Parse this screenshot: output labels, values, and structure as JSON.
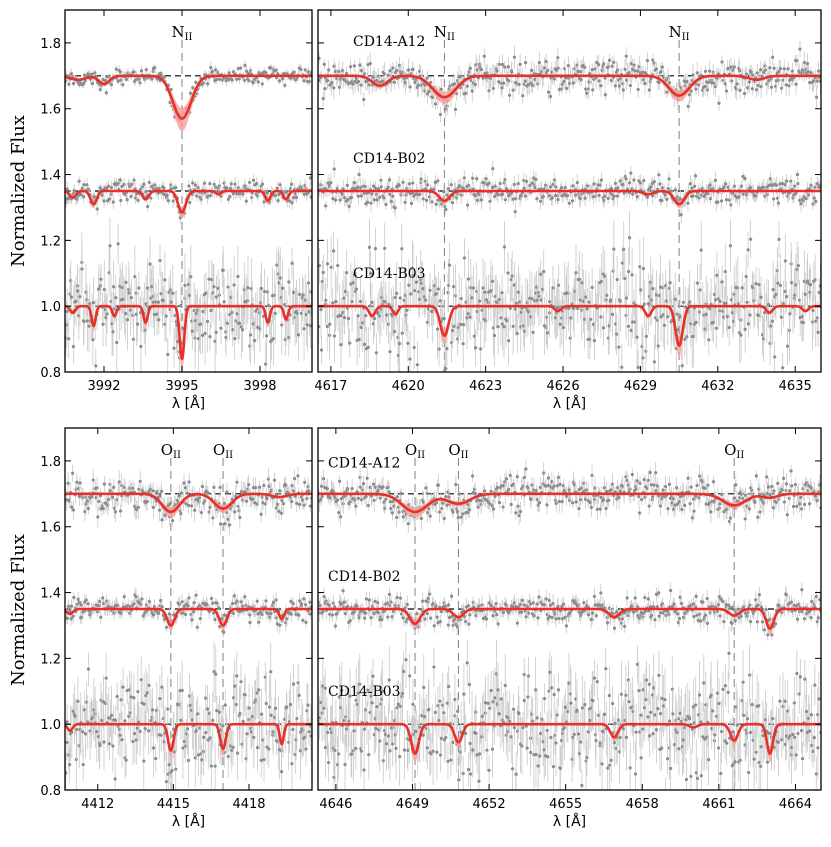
{
  "figure": {
    "ylabel": "Normalized Flux",
    "xlabel": "λ [Å]",
    "colors": {
      "model": "#e8302a",
      "model_band": "#f4a49e",
      "data": "#8c8c8c",
      "continuum": "#000000",
      "line_marker": "#808080"
    }
  },
  "chart_data": [
    {
      "type": "line",
      "panel": "top-left",
      "xlim": [
        3990.5,
        4000
      ],
      "ylim": [
        0.8,
        1.9
      ],
      "xticks": [
        "3992",
        "3995",
        "3998"
      ],
      "yticks": [
        "0.8",
        "1.0",
        "1.2",
        "1.4",
        "1.6",
        "1.8"
      ],
      "xlabel": "λ [Å]",
      "ylabel": "Normalized Flux",
      "grid": false,
      "continuum": [
        1.0,
        1.35,
        1.7
      ],
      "noise": [
        0.012,
        0.016,
        0.07
      ],
      "line_markers": [
        3995.0
      ],
      "line_labels": [
        {
          "x": 3995.0,
          "text": "N",
          "ion": "II"
        }
      ],
      "star_labels": [],
      "series": [
        {
          "name": "CD14-A12",
          "offset": 0.7,
          "absorption_lines": [
            {
              "center": 3995.0,
              "depth": 0.13,
              "sigma": 0.35
            },
            {
              "center": 3992.0,
              "depth": 0.025,
              "sigma": 0.2
            },
            {
              "center": 3991.0,
              "depth": 0.012,
              "sigma": 0.3
            }
          ]
        },
        {
          "name": "CD14-B02",
          "offset": 0.35,
          "absorption_lines": [
            {
              "center": 3995.0,
              "depth": 0.065,
              "sigma": 0.15
            },
            {
              "center": 3991.6,
              "depth": 0.04,
              "sigma": 0.12
            },
            {
              "center": 3993.6,
              "depth": 0.025,
              "sigma": 0.12
            },
            {
              "center": 3996.4,
              "depth": 0.01,
              "sigma": 0.1
            },
            {
              "center": 3998.3,
              "depth": 0.03,
              "sigma": 0.1
            },
            {
              "center": 3999.0,
              "depth": 0.025,
              "sigma": 0.1
            },
            {
              "center": 3990.8,
              "depth": 0.02,
              "sigma": 0.12
            }
          ]
        },
        {
          "name": "CD14-B03",
          "offset": 0.0,
          "absorption_lines": [
            {
              "center": 3995.0,
              "depth": 0.16,
              "sigma": 0.09
            },
            {
              "center": 3991.6,
              "depth": 0.06,
              "sigma": 0.08
            },
            {
              "center": 3993.6,
              "depth": 0.05,
              "sigma": 0.08
            },
            {
              "center": 3998.3,
              "depth": 0.05,
              "sigma": 0.08
            },
            {
              "center": 3999.0,
              "depth": 0.04,
              "sigma": 0.08
            },
            {
              "center": 3990.8,
              "depth": 0.02,
              "sigma": 0.1
            },
            {
              "center": 3992.4,
              "depth": 0.03,
              "sigma": 0.08
            }
          ]
        }
      ]
    },
    {
      "type": "line",
      "panel": "top-right",
      "xlim": [
        4616.5,
        4636
      ],
      "ylim": [
        0.8,
        1.9
      ],
      "xticks": [
        "4617",
        "4620",
        "4623",
        "4626",
        "4629",
        "4632",
        "4635"
      ],
      "yticks": [],
      "xlabel": "λ [Å]",
      "grid": false,
      "continuum": [
        1.0,
        1.35,
        1.7
      ],
      "noise": [
        0.025,
        0.02,
        0.07
      ],
      "line_markers": [
        4621.4,
        4630.5
      ],
      "line_labels": [
        {
          "x": 4621.4,
          "text": "N",
          "ion": "II"
        },
        {
          "x": 4630.5,
          "text": "N",
          "ion": "II"
        }
      ],
      "star_labels": [
        {
          "text": "CD14-A12",
          "y": 1.79
        },
        {
          "text": "CD14-B02",
          "y": 1.435
        },
        {
          "text": "CD14-B03",
          "y": 1.085
        }
      ],
      "series": [
        {
          "name": "CD14-A12",
          "offset": 0.7,
          "absorption_lines": [
            {
              "center": 4621.4,
              "depth": 0.065,
              "sigma": 0.45
            },
            {
              "center": 4630.5,
              "depth": 0.06,
              "sigma": 0.4
            },
            {
              "center": 4618.9,
              "depth": 0.03,
              "sigma": 0.3
            },
            {
              "center": 4633.5,
              "depth": 0.012,
              "sigma": 0.3
            }
          ]
        },
        {
          "name": "CD14-B02",
          "offset": 0.35,
          "absorption_lines": [
            {
              "center": 4621.4,
              "depth": 0.03,
              "sigma": 0.2
            },
            {
              "center": 4630.5,
              "depth": 0.04,
              "sigma": 0.2
            },
            {
              "center": 4629.3,
              "depth": 0.01,
              "sigma": 0.2
            }
          ]
        },
        {
          "name": "CD14-B03",
          "offset": 0.0,
          "absorption_lines": [
            {
              "center": 4621.4,
              "depth": 0.09,
              "sigma": 0.16
            },
            {
              "center": 4630.5,
              "depth": 0.12,
              "sigma": 0.14
            },
            {
              "center": 4618.6,
              "depth": 0.03,
              "sigma": 0.12
            },
            {
              "center": 4619.5,
              "depth": 0.025,
              "sigma": 0.1
            },
            {
              "center": 4625.8,
              "depth": 0.015,
              "sigma": 0.12
            },
            {
              "center": 4629.3,
              "depth": 0.03,
              "sigma": 0.12
            },
            {
              "center": 4634.0,
              "depth": 0.02,
              "sigma": 0.12
            },
            {
              "center": 4635.4,
              "depth": 0.015,
              "sigma": 0.12
            }
          ]
        }
      ]
    },
    {
      "type": "line",
      "panel": "bottom-left",
      "xlim": [
        4410.7,
        4420.5
      ],
      "ylim": [
        0.8,
        1.9
      ],
      "xticks": [
        "4412",
        "4415",
        "4418"
      ],
      "yticks": [
        "0.8",
        "1.0",
        "1.2",
        "1.4",
        "1.6",
        "1.8"
      ],
      "xlabel": "λ [Å]",
      "ylabel": "Normalized Flux",
      "grid": false,
      "continuum": [
        1.0,
        1.35,
        1.7
      ],
      "noise": [
        0.025,
        0.018,
        0.07
      ],
      "line_markers": [
        4414.9,
        4416.97
      ],
      "line_labels": [
        {
          "x": 4414.9,
          "text": "O",
          "ion": "II"
        },
        {
          "x": 4416.97,
          "text": "O",
          "ion": "II"
        }
      ],
      "star_labels": [],
      "series": [
        {
          "name": "CD14-A12",
          "offset": 0.7,
          "absorption_lines": [
            {
              "center": 4414.9,
              "depth": 0.055,
              "sigma": 0.35
            },
            {
              "center": 4416.97,
              "depth": 0.045,
              "sigma": 0.35
            },
            {
              "center": 4419.2,
              "depth": 0.01,
              "sigma": 0.3
            }
          ]
        },
        {
          "name": "CD14-B02",
          "offset": 0.35,
          "absorption_lines": [
            {
              "center": 4414.9,
              "depth": 0.05,
              "sigma": 0.15
            },
            {
              "center": 4416.97,
              "depth": 0.05,
              "sigma": 0.15
            },
            {
              "center": 4419.3,
              "depth": 0.03,
              "sigma": 0.1
            },
            {
              "center": 4410.9,
              "depth": 0.015,
              "sigma": 0.12
            }
          ]
        },
        {
          "name": "CD14-B03",
          "offset": 0.0,
          "absorption_lines": [
            {
              "center": 4414.9,
              "depth": 0.08,
              "sigma": 0.11
            },
            {
              "center": 4416.97,
              "depth": 0.075,
              "sigma": 0.11
            },
            {
              "center": 4419.3,
              "depth": 0.06,
              "sigma": 0.08
            },
            {
              "center": 4410.9,
              "depth": 0.02,
              "sigma": 0.1
            }
          ]
        }
      ]
    },
    {
      "type": "line",
      "panel": "bottom-right",
      "xlim": [
        4645.3,
        4665
      ],
      "ylim": [
        0.8,
        1.9
      ],
      "xticks": [
        "4646",
        "4649",
        "4652",
        "4655",
        "4658",
        "4661",
        "4664"
      ],
      "yticks": [],
      "xlabel": "λ [Å]",
      "grid": false,
      "continuum": [
        1.0,
        1.35,
        1.7
      ],
      "noise": [
        0.025,
        0.02,
        0.075
      ],
      "line_markers": [
        4649.1,
        4650.8,
        4661.6
      ],
      "line_labels": [
        {
          "x": 4649.1,
          "text": "O",
          "ion": "II"
        },
        {
          "x": 4650.8,
          "text": "O",
          "ion": "II"
        },
        {
          "x": 4661.6,
          "text": "O",
          "ion": "II"
        }
      ],
      "star_labels": [
        {
          "text": "CD14-A12",
          "y": 1.78
        },
        {
          "text": "CD14-B02",
          "y": 1.435
        },
        {
          "text": "CD14-B03",
          "y": 1.085
        }
      ],
      "series": [
        {
          "name": "CD14-A12",
          "offset": 0.7,
          "absorption_lines": [
            {
              "center": 4649.1,
              "depth": 0.055,
              "sigma": 0.5
            },
            {
              "center": 4650.8,
              "depth": 0.03,
              "sigma": 0.45
            },
            {
              "center": 4661.6,
              "depth": 0.035,
              "sigma": 0.45
            },
            {
              "center": 4663.0,
              "depth": 0.012,
              "sigma": 0.3
            }
          ]
        },
        {
          "name": "CD14-B02",
          "offset": 0.35,
          "absorption_lines": [
            {
              "center": 4649.1,
              "depth": 0.045,
              "sigma": 0.2
            },
            {
              "center": 4650.8,
              "depth": 0.025,
              "sigma": 0.2
            },
            {
              "center": 4661.6,
              "depth": 0.02,
              "sigma": 0.2
            },
            {
              "center": 4663.0,
              "depth": 0.06,
              "sigma": 0.15
            },
            {
              "center": 4656.9,
              "depth": 0.025,
              "sigma": 0.2
            }
          ]
        },
        {
          "name": "CD14-B03",
          "offset": 0.0,
          "absorption_lines": [
            {
              "center": 4649.1,
              "depth": 0.09,
              "sigma": 0.15
            },
            {
              "center": 4650.8,
              "depth": 0.055,
              "sigma": 0.15
            },
            {
              "center": 4661.6,
              "depth": 0.05,
              "sigma": 0.15
            },
            {
              "center": 4663.0,
              "depth": 0.09,
              "sigma": 0.12
            },
            {
              "center": 4656.9,
              "depth": 0.04,
              "sigma": 0.15
            },
            {
              "center": 4660.0,
              "depth": 0.01,
              "sigma": 0.15
            }
          ]
        }
      ]
    }
  ]
}
